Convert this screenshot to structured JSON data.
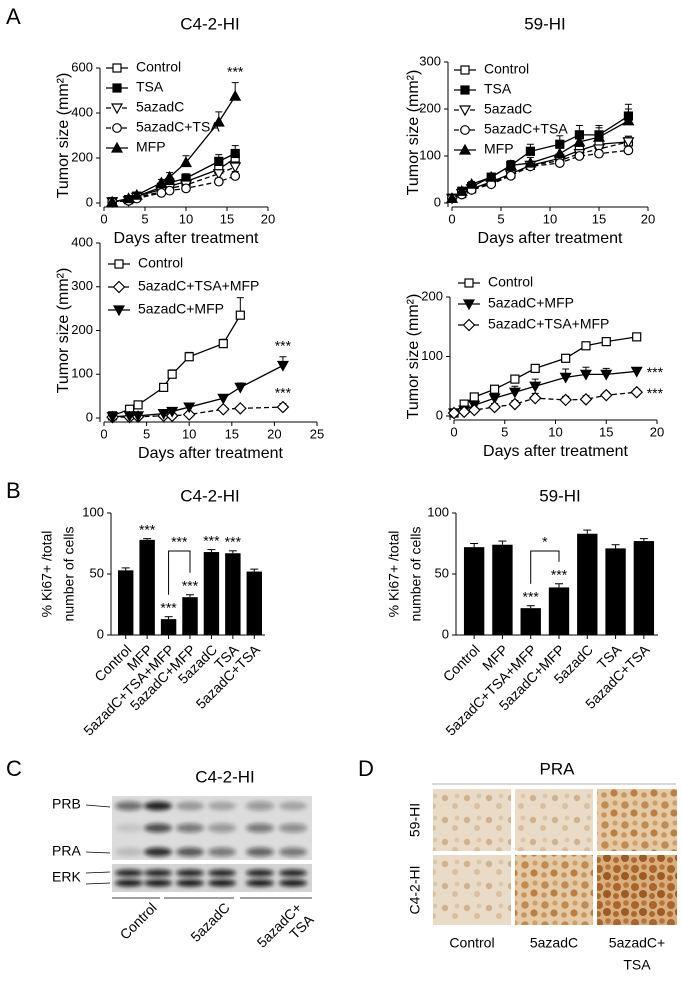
{
  "panel_labels": [
    "A",
    "B",
    "C",
    "D"
  ],
  "chart_data": [
    {
      "type": "line",
      "title": "C4-2-HI",
      "xlabel": "Days after treatment",
      "ylabel": "Tumor size (mm²)",
      "xlim": [
        0,
        20
      ],
      "xticks": [
        0,
        5,
        10,
        15,
        20
      ],
      "ylim": [
        0,
        600
      ],
      "yticks": [
        0,
        200,
        400,
        600
      ],
      "significance_position": "above",
      "series": [
        {
          "name": "Control",
          "marker": "open-square",
          "dashed": false,
          "color": "#000000",
          "x": [
            1,
            3,
            4,
            7,
            8,
            10,
            14,
            16
          ],
          "values": [
            5,
            15,
            30,
            60,
            75,
            95,
            150,
            200
          ],
          "errors": [
            2,
            4,
            5,
            10,
            12,
            15,
            25,
            30
          ]
        },
        {
          "name": "TSA",
          "marker": "filled-square",
          "dashed": false,
          "color": "#000000",
          "x": [
            1,
            3,
            4,
            7,
            8,
            10,
            14,
            16
          ],
          "values": [
            5,
            15,
            30,
            70,
            90,
            110,
            185,
            220
          ],
          "errors": [
            2,
            4,
            5,
            12,
            15,
            20,
            30,
            35
          ]
        },
        {
          "name": "5azadC",
          "marker": "open-triangle-down",
          "dashed": true,
          "color": "#000000",
          "x": [
            1,
            3,
            4,
            7,
            8,
            10,
            14,
            16
          ],
          "values": [
            5,
            10,
            25,
            50,
            65,
            80,
            130,
            160
          ],
          "errors": [
            2,
            3,
            5,
            10,
            10,
            12,
            20,
            25
          ]
        },
        {
          "name": "5azadC+TSA",
          "marker": "open-circle",
          "dashed": true,
          "color": "#000000",
          "x": [
            1,
            3,
            4,
            7,
            8,
            10,
            14,
            16
          ],
          "values": [
            5,
            10,
            20,
            45,
            55,
            65,
            95,
            120
          ],
          "errors": [
            2,
            3,
            4,
            8,
            8,
            10,
            15,
            20
          ]
        },
        {
          "name": "MFP",
          "marker": "filled-triangle-up",
          "dashed": false,
          "color": "#000000",
          "x": [
            1,
            3,
            4,
            7,
            8,
            10,
            14,
            16
          ],
          "values": [
            5,
            20,
            35,
            90,
            115,
            180,
            360,
            475
          ],
          "errors": [
            2,
            5,
            6,
            15,
            20,
            30,
            45,
            60
          ],
          "significance": "***"
        }
      ]
    },
    {
      "type": "line",
      "title": "59-HI",
      "xlabel": "Days after treatment",
      "ylabel": "Tumor size (mm²)",
      "xlim": [
        0,
        20
      ],
      "xticks": [
        0,
        5,
        10,
        15,
        20
      ],
      "ylim": [
        0,
        300
      ],
      "yticks": [
        0,
        100,
        200,
        300
      ],
      "significance_position": "above",
      "series": [
        {
          "name": "Control",
          "marker": "open-square",
          "dashed": false,
          "color": "#000000",
          "x": [
            0,
            1,
            2,
            4,
            6,
            8,
            11,
            13,
            15,
            18
          ],
          "values": [
            10,
            20,
            30,
            45,
            62,
            80,
            95,
            112,
            125,
            130
          ],
          "errors": [
            3,
            4,
            5,
            6,
            8,
            8,
            10,
            12,
            12,
            12
          ]
        },
        {
          "name": "TSA",
          "marker": "filled-square",
          "dashed": false,
          "color": "#000000",
          "x": [
            0,
            1,
            2,
            4,
            6,
            8,
            11,
            13,
            15,
            18
          ],
          "values": [
            10,
            25,
            35,
            55,
            80,
            110,
            125,
            145,
            145,
            185
          ],
          "errors": [
            3,
            5,
            6,
            8,
            10,
            15,
            18,
            20,
            20,
            25
          ]
        },
        {
          "name": "5azadC",
          "marker": "open-triangle-down",
          "dashed": true,
          "color": "#000000",
          "x": [
            0,
            1,
            2,
            4,
            6,
            8,
            11,
            13,
            15,
            18
          ],
          "values": [
            10,
            20,
            30,
            42,
            60,
            80,
            90,
            105,
            115,
            130
          ],
          "errors": [
            3,
            4,
            5,
            6,
            8,
            8,
            10,
            10,
            12,
            12
          ]
        },
        {
          "name": "5azadC+TSA",
          "marker": "open-circle",
          "dashed": true,
          "color": "#000000",
          "x": [
            0,
            1,
            2,
            4,
            6,
            8,
            11,
            13,
            15,
            18
          ],
          "values": [
            10,
            18,
            28,
            40,
            58,
            78,
            85,
            100,
            105,
            112
          ],
          "errors": [
            3,
            4,
            5,
            6,
            8,
            8,
            10,
            10,
            12,
            15
          ]
        },
        {
          "name": "MFP",
          "marker": "filled-triangle-up",
          "dashed": false,
          "color": "#000000",
          "x": [
            0,
            1,
            2,
            4,
            6,
            8,
            11,
            13,
            15,
            18
          ],
          "values": [
            10,
            25,
            40,
            55,
            80,
            85,
            105,
            130,
            140,
            175
          ],
          "errors": [
            3,
            5,
            6,
            8,
            10,
            12,
            15,
            18,
            20,
            25
          ]
        }
      ]
    },
    {
      "type": "line",
      "xlabel": "Days after treatment",
      "ylabel": "Tumor size (mm²)",
      "xlim": [
        0,
        25
      ],
      "xticks": [
        0,
        5,
        10,
        15,
        20,
        25
      ],
      "ylim": [
        0,
        400
      ],
      "yticks": [
        0,
        100,
        200,
        300,
        400
      ],
      "significance_position": "above",
      "series": [
        {
          "name": "Control",
          "marker": "open-square",
          "dashed": false,
          "color": "#000000",
          "x": [
            1,
            3,
            4,
            7,
            8,
            10,
            14,
            16
          ],
          "values": [
            5,
            20,
            30,
            70,
            100,
            140,
            170,
            235
          ],
          "errors": [
            2,
            4,
            5,
            8,
            10,
            10,
            10,
            40
          ]
        },
        {
          "name": "5azadC+TSA+MFP",
          "marker": "open-diamond",
          "dashed": true,
          "color": "#000000",
          "x": [
            1,
            3,
            4,
            7,
            8,
            10,
            14,
            16,
            21
          ],
          "values": [
            2,
            2,
            3,
            5,
            5,
            8,
            20,
            22,
            25
          ],
          "errors": [
            1,
            1,
            1,
            2,
            2,
            3,
            5,
            5,
            8
          ],
          "significance": "***"
        },
        {
          "name": "5azadC+MFP",
          "marker": "filled-triangle-down",
          "dashed": false,
          "color": "#000000",
          "x": [
            1,
            3,
            4,
            7,
            8,
            10,
            14,
            16,
            21
          ],
          "values": [
            3,
            5,
            5,
            10,
            15,
            25,
            45,
            70,
            120
          ],
          "errors": [
            1,
            2,
            2,
            3,
            4,
            6,
            8,
            10,
            20
          ],
          "significance": "***"
        }
      ]
    },
    {
      "type": "line",
      "xlabel": "Days after treatment",
      "ylabel": "Tumor size (mm²)",
      "xlim": [
        0,
        20
      ],
      "xticks": [
        0,
        5,
        10,
        15,
        20
      ],
      "ylim": [
        0,
        200
      ],
      "yticks": [
        0,
        100,
        200
      ],
      "significance_position": "right",
      "series": [
        {
          "name": "Control",
          "marker": "open-square",
          "dashed": false,
          "color": "#000000",
          "x": [
            0,
            1,
            2,
            4,
            6,
            8,
            11,
            13,
            15,
            18
          ],
          "values": [
            5,
            20,
            32,
            45,
            62,
            80,
            97,
            118,
            125,
            133
          ],
          "errors": [
            2,
            3,
            3,
            4,
            4,
            5,
            6,
            6,
            6,
            6
          ]
        },
        {
          "name": "5azadC+MFP",
          "marker": "filled-triangle-down",
          "dashed": false,
          "color": "#000000",
          "x": [
            0,
            1,
            2,
            4,
            6,
            8,
            11,
            13,
            15,
            18
          ],
          "values": [
            5,
            10,
            18,
            30,
            40,
            50,
            65,
            70,
            70,
            75
          ],
          "errors": [
            3,
            4,
            6,
            8,
            10,
            12,
            14,
            12,
            10,
            5
          ],
          "significance": "***"
        },
        {
          "name": "5azadC+TSA+MFP",
          "marker": "open-diamond",
          "dashed": true,
          "color": "#000000",
          "x": [
            0,
            1,
            2,
            4,
            6,
            8,
            11,
            13,
            15,
            18
          ],
          "values": [
            5,
            7,
            10,
            15,
            20,
            30,
            27,
            28,
            35,
            40
          ],
          "errors": [
            3,
            4,
            5,
            6,
            6,
            8,
            6,
            6,
            5,
            5
          ],
          "significance": "***"
        }
      ]
    },
    {
      "type": "bar",
      "title": "C4-2-HI",
      "ylabel": [
        "% Ki67+ /total",
        "number of cells"
      ],
      "color": "#000000",
      "categories": [
        "Control",
        "MFP",
        "5azadC+TSA+MFP",
        "5azadC+MFP",
        "5azadC",
        "TSA",
        "5azadC+TSA"
      ],
      "values": [
        53,
        78,
        13,
        31,
        68,
        67,
        52
      ],
      "errors": [
        2,
        1,
        2,
        2,
        2,
        2,
        2
      ],
      "significance": [
        null,
        "***",
        "***",
        "***",
        "***",
        "***",
        null
      ],
      "bracket": {
        "categories": [
          "5azadC+TSA+MFP",
          "5azadC+MFP"
        ],
        "label": "***"
      },
      "ylim": [
        0,
        100
      ],
      "yticks": [
        0,
        50,
        100
      ]
    },
    {
      "type": "bar",
      "title": "59-HI",
      "ylabel": [
        "% Ki67+ /total",
        "number of cells"
      ],
      "color": "#000000",
      "categories": [
        "Control",
        "MFP",
        "5azadC+TSA+MFP",
        "5azadC+MFP",
        "5azadC",
        "TSA",
        "5azadC+TSA"
      ],
      "values": [
        72,
        74,
        22,
        39,
        83,
        71,
        77
      ],
      "errors": [
        3,
        3,
        2,
        3,
        3,
        3,
        2
      ],
      "significance": [
        null,
        null,
        "***",
        "***",
        null,
        null,
        null
      ],
      "bracket": {
        "categories": [
          "5azadC+TSA+MFP",
          "5azadC+MFP"
        ],
        "label": "*"
      },
      "ylim": [
        0,
        100
      ],
      "yticks": [
        0,
        50,
        100
      ]
    }
  ],
  "blot": {
    "title": "C4-2-HI",
    "bands": [
      "PRB",
      "PRA",
      "ERK"
    ],
    "lanes": [
      [
        "Control"
      ],
      [
        "5azadC"
      ],
      [
        "5azadC+",
        "TSA"
      ]
    ]
  },
  "ihc": {
    "title": "PRA",
    "rows": [
      "59-HI",
      "C4-2-HI"
    ],
    "columns": [
      [
        "Control"
      ],
      [
        "5azadC"
      ],
      [
        "5azadC+",
        "TSA"
      ]
    ]
  }
}
